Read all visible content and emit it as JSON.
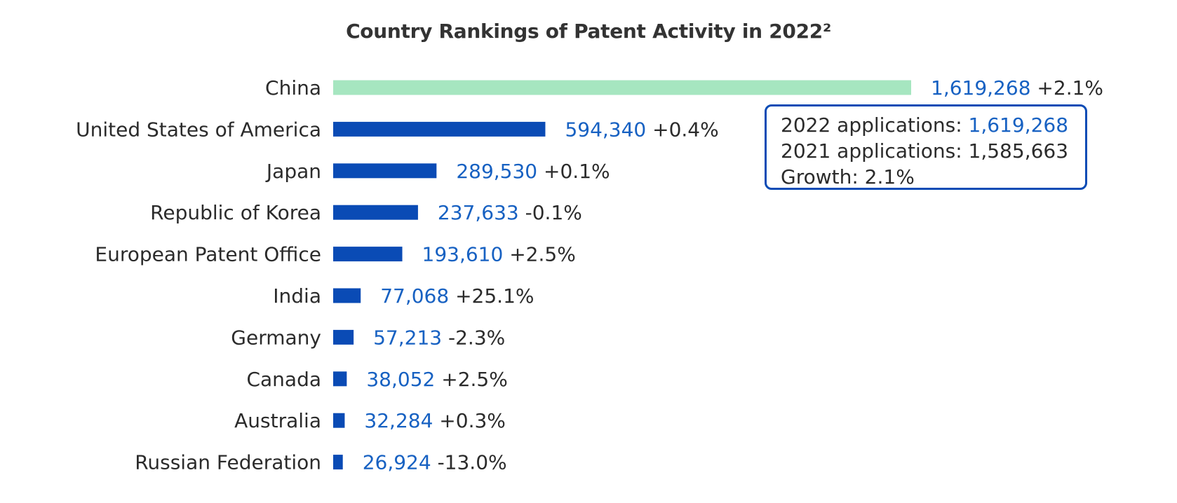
{
  "chart_data": {
    "type": "bar",
    "orientation": "horizontal",
    "title": "Country Rankings of Patent Activity in 2022²",
    "xlabel": "",
    "ylabel": "",
    "grid": false,
    "categories": [
      "China",
      "United States of America",
      "Japan",
      "Republic of Korea",
      "European Patent Office",
      "India",
      "Germany",
      "Canada",
      "Australia",
      "Russian Federation"
    ],
    "values": [
      1619268,
      594340,
      289530,
      237633,
      193610,
      77068,
      57213,
      38052,
      32284,
      26924
    ],
    "value_labels": [
      "1,619,268",
      "594,340",
      "289,530",
      "237,633",
      "193,610",
      "77,068",
      "57,213",
      "38,052",
      "32,284",
      "26,924"
    ],
    "growth_labels": [
      "+2.1%",
      "+0.4%",
      "+0.1%",
      "-0.1%",
      "+2.5%",
      "+25.1%",
      "-2.3%",
      "+2.5%",
      "+0.3%",
      "-13.0%"
    ],
    "highlighted_index": 0
  },
  "tooltip": {
    "line1_label": "2022 applications: ",
    "line1_value": "1,619,268",
    "line2": "2021 applications: 1,585,663",
    "line3": "Growth: 2.1%"
  },
  "colors": {
    "bar": "#0a4bb5",
    "bar_highlight": "#a6e6c0",
    "value_text": "#1761c2",
    "label_text": "#2b2b2b"
  }
}
